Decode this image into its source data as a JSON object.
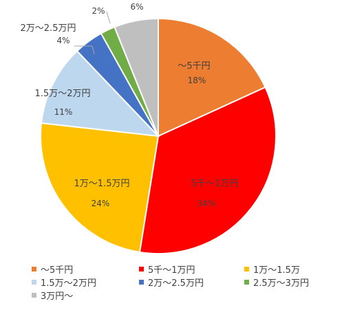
{
  "chart_data": {
    "type": "pie",
    "start_angle_deg": 0,
    "direction": "clockwise",
    "legend_position": "bottom",
    "slices": [
      {
        "label": "～5千円",
        "value": 18,
        "value_label": "18%",
        "color": "#ED7D31"
      },
      {
        "label": "5千～1万円",
        "value": 34,
        "value_label": "34%",
        "color": "#FF0000"
      },
      {
        "label": "1万～1.5万円",
        "value": 24,
        "value_label": "24%",
        "color": "#FFC000"
      },
      {
        "label": "1.5万～2万円",
        "value": 11,
        "value_label": "11%",
        "color": "#BDD7EE"
      },
      {
        "label": "2万～2.5万円",
        "value": 4,
        "value_label": "4%",
        "color": "#4472C4"
      },
      {
        "label": "2.5万～3万円",
        "value": 2,
        "value_label": "2%",
        "color": "#70AD47"
      },
      {
        "label": "3万円～",
        "value": 6,
        "value_label": "6%",
        "color": "#BFBFBF"
      }
    ],
    "legend": [
      {
        "label": "～5千円",
        "color": "#ED7D31"
      },
      {
        "label": "5千～1万円",
        "color": "#FF0000"
      },
      {
        "label": "1万～1.5万",
        "color": "#FFC000"
      },
      {
        "label": "1.5万～2万円",
        "color": "#BDD7EE"
      },
      {
        "label": "2万～2.5万円",
        "color": "#4472C4"
      },
      {
        "label": "2.5万～3万円",
        "color": "#70AD47"
      },
      {
        "label": "3万円～",
        "color": "#BFBFBF"
      }
    ]
  }
}
